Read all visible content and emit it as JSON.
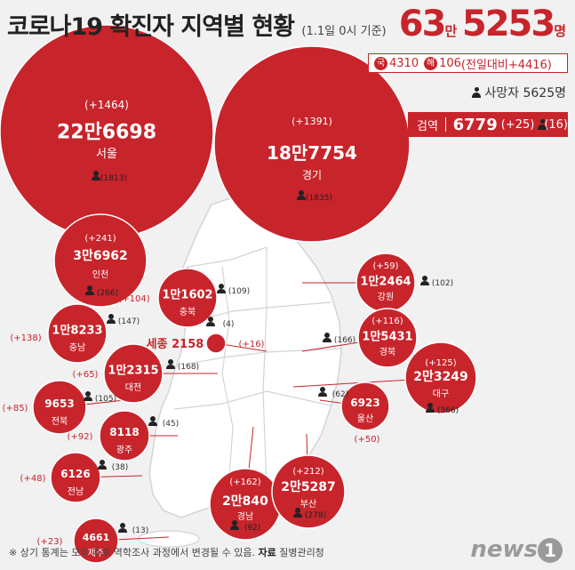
{
  "title": "코로나19 확진자 지역별 현황",
  "subtitle": "(1.1일 0시 기준)",
  "total": {
    "num1": "63",
    "unit1": "만",
    "num2": "5253",
    "unit2": "명"
  },
  "domestic": {
    "kuk_icon": "국",
    "kuk": "4310",
    "hae_icon": "해",
    "hae": "106",
    "change": "(전일대비+4416)"
  },
  "deaths_label": "사망자 5625명",
  "quarantine": {
    "label": "검역",
    "value": "6779",
    "change": "(+25)",
    "deaths": "(16)"
  },
  "footer": {
    "note": "※ 상기 통계는 모두 추후 역학조사 과정에서 변경될 수 있음.",
    "source_label": "자료",
    "source": "질병관리청"
  },
  "logo": "news",
  "logo_mark": "1",
  "colors": {
    "accent": "#c8242b",
    "map": "#ffffff",
    "background": "#f1f1f1"
  },
  "chart_data": {
    "type": "bubble-map",
    "title": "코로나19 확진자 지역별 현황",
    "regions": [
      {
        "name": "서울",
        "value": "22만6698",
        "cases": 226698,
        "change": "(+1464)",
        "deaths": "(1813)"
      },
      {
        "name": "경기",
        "value": "18만7754",
        "cases": 187754,
        "change": "(+1391)",
        "deaths": "(1835)"
      },
      {
        "name": "인천",
        "value": "3만6962",
        "cases": 36962,
        "change": "(+241)",
        "deaths": "(266)"
      },
      {
        "name": "충북",
        "value": "1만1602",
        "cases": 11602,
        "change": "(+104)",
        "deaths": "(109)"
      },
      {
        "name": "강원",
        "value": "1만2464",
        "cases": 12464,
        "change": "(+59)",
        "deaths": "(102)"
      },
      {
        "name": "충남",
        "value": "1만8233",
        "cases": 18233,
        "change": "(+138)",
        "deaths": "(147)"
      },
      {
        "name": "세종",
        "value": "2158",
        "cases": 2158,
        "change": "(+16)",
        "deaths": "(4)"
      },
      {
        "name": "경북",
        "value": "1만5431",
        "cases": 15431,
        "change": "(+116)",
        "deaths": "(166)"
      },
      {
        "name": "대전",
        "value": "1만2315",
        "cases": 12315,
        "change": "(+65)",
        "deaths": "(168)"
      },
      {
        "name": "대구",
        "value": "2만3249",
        "cases": 23249,
        "change": "(+125)",
        "deaths": "(366)"
      },
      {
        "name": "전북",
        "value": "9653",
        "cases": 9653,
        "change": "(+85)",
        "deaths": "(105)"
      },
      {
        "name": "울산",
        "value": "6923",
        "cases": 6923,
        "change": "(+50)",
        "deaths": "(62)"
      },
      {
        "name": "광주",
        "value": "8118",
        "cases": 8118,
        "change": "(+92)",
        "deaths": "(45)"
      },
      {
        "name": "전남",
        "value": "6126",
        "cases": 6126,
        "change": "(+48)",
        "deaths": "(38)"
      },
      {
        "name": "경남",
        "value": "2만840",
        "cases": 20840,
        "change": "(+162)",
        "deaths": "(92)"
      },
      {
        "name": "부산",
        "value": "2만5287",
        "cases": 25287,
        "change": "(+212)",
        "deaths": "(278)"
      },
      {
        "name": "제주",
        "value": "4661",
        "cases": 4661,
        "change": "(+23)",
        "deaths": "(13)"
      }
    ]
  }
}
